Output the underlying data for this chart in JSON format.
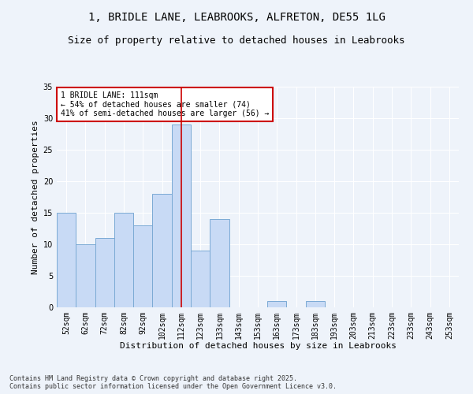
{
  "title1": "1, BRIDLE LANE, LEABROOKS, ALFRETON, DE55 1LG",
  "title2": "Size of property relative to detached houses in Leabrooks",
  "xlabel": "Distribution of detached houses by size in Leabrooks",
  "ylabel": "Number of detached properties",
  "categories": [
    "52sqm",
    "62sqm",
    "72sqm",
    "82sqm",
    "92sqm",
    "102sqm",
    "112sqm",
    "123sqm",
    "133sqm",
    "143sqm",
    "153sqm",
    "163sqm",
    "173sqm",
    "183sqm",
    "193sqm",
    "203sqm",
    "213sqm",
    "223sqm",
    "233sqm",
    "243sqm",
    "253sqm"
  ],
  "values": [
    15,
    10,
    11,
    15,
    13,
    18,
    29,
    9,
    14,
    0,
    0,
    1,
    0,
    1,
    0,
    0,
    0,
    0,
    0,
    0,
    0
  ],
  "bar_color": "#c8daf5",
  "bar_edge_color": "#7baad4",
  "vline_x": 6,
  "vline_color": "#cc0000",
  "annotation_text": "1 BRIDLE LANE: 111sqm\n← 54% of detached houses are smaller (74)\n41% of semi-detached houses are larger (56) →",
  "annotation_box_color": "#ffffff",
  "annotation_box_edge": "#cc0000",
  "ylim": [
    0,
    35
  ],
  "yticks": [
    0,
    5,
    10,
    15,
    20,
    25,
    30,
    35
  ],
  "background_color": "#eef3fa",
  "footer_text": "Contains HM Land Registry data © Crown copyright and database right 2025.\nContains public sector information licensed under the Open Government Licence v3.0.",
  "title_fontsize": 10,
  "subtitle_fontsize": 9,
  "xlabel_fontsize": 8,
  "ylabel_fontsize": 8,
  "tick_fontsize": 7,
  "annotation_fontsize": 7,
  "footer_fontsize": 6
}
